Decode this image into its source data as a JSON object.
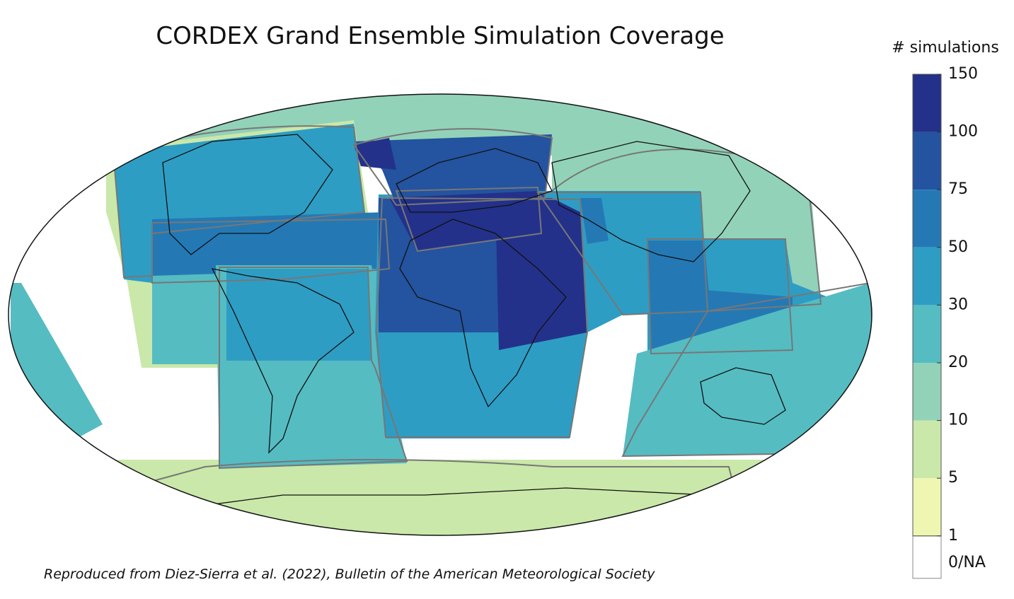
{
  "title": "CORDEX Grand Ensemble Simulation Coverage",
  "legend": {
    "title": "# simulations",
    "ticks": [
      150,
      100,
      75,
      50,
      30,
      20,
      10,
      5,
      1
    ],
    "colors": [
      "#23318a",
      "#24539f",
      "#2479b5",
      "#2e9dc4",
      "#55bcc2",
      "#92d2b9",
      "#cae8a9",
      "#eef6b2"
    ],
    "na_label": "0/NA"
  },
  "caption": "Reproduced from Diez-Sierra et al. (2022), Bulletin of the American Meteorological Society"
}
